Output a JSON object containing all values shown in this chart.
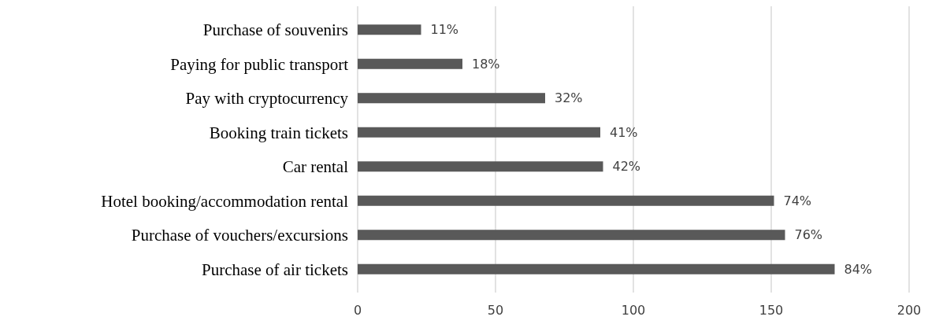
{
  "chart_data": {
    "type": "bar",
    "orientation": "horizontal",
    "categories": [
      "Purchase of souvenirs",
      "Paying for public transport",
      "Pay with cryptocurrency",
      "Booking train tickets",
      "Car rental",
      "Hotel booking/accommodation rental",
      "Purchase of vouchers/excursions",
      "Purchase of air tickets"
    ],
    "values": [
      23,
      38,
      68,
      88,
      89,
      151,
      155,
      173
    ],
    "annotations": [
      {
        "text": "11%",
        "x": 23,
        "y": "Purchase of souvenirs"
      },
      {
        "text": "18%",
        "x": 38,
        "y": "Paying for public transport"
      },
      {
        "text": "32%",
        "x": 68,
        "y": "Pay with cryptocurrency"
      },
      {
        "text": "41%",
        "x": 88,
        "y": "Booking train tickets"
      },
      {
        "text": "42%",
        "x": 89,
        "y": "Car rental"
      },
      {
        "text": "74%",
        "x": 151,
        "y": "Hotel booking/accommodation rental"
      },
      {
        "text": "76%",
        "x": 155,
        "y": "Purchase of vouchers/excursions"
      },
      {
        "text": "84%",
        "x": 173,
        "y": "Purchase of air tickets"
      }
    ],
    "color": "#595959",
    "xlim": [
      0,
      200
    ],
    "xticks": [
      0,
      50,
      100,
      150,
      200
    ],
    "grid": "x"
  }
}
